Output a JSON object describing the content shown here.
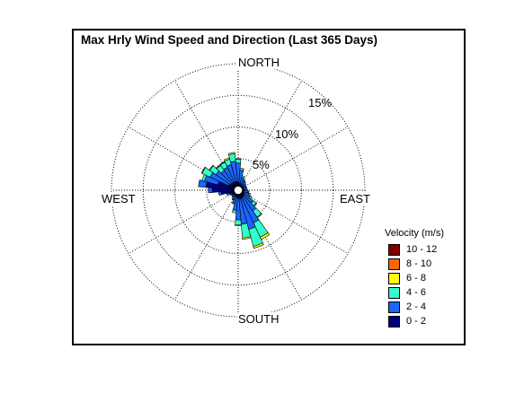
{
  "chart_data": {
    "type": "windrose",
    "title": "Max Hrly Wind Speed and Direction (Last 365 Days)",
    "directions": {
      "north": "NORTH",
      "south": "SOUTH",
      "east": "EAST",
      "west": "WEST"
    },
    "rings": [
      {
        "value": 5,
        "label": "5%"
      },
      {
        "value": 10,
        "label": "10%"
      },
      {
        "value": 15,
        "label": "15%"
      },
      {
        "value": 20,
        "label": ""
      }
    ],
    "legend": {
      "title": "Velocity (m/s)",
      "bins": [
        {
          "label": "10 - 12",
          "color": "#800000"
        },
        {
          "label": "8 - 10",
          "color": "#ff6600"
        },
        {
          "label": "6 - 8",
          "color": "#ffff00"
        },
        {
          "label": "4 - 6",
          "color": "#33ffcc"
        },
        {
          "label": "2 - 4",
          "color": "#1a66ff"
        },
        {
          "label": "0 - 2",
          "color": "#000080"
        }
      ]
    },
    "bin_order_inside_out": [
      "0 - 2",
      "2 - 4",
      "4 - 6",
      "6 - 8",
      "8 - 10",
      "10 - 12"
    ],
    "sector_width_deg": 10,
    "calm_center_percent": 0.5,
    "series": [
      {
        "direction_deg": 0,
        "values": [
          0.8,
          3.0,
          0.6,
          0.1,
          0,
          0
        ]
      },
      {
        "direction_deg": 10,
        "values": [
          0.7,
          2.0,
          0.3,
          0.0,
          0,
          0
        ]
      },
      {
        "direction_deg": 20,
        "values": [
          0.6,
          1.0,
          0.3,
          0.0,
          0,
          0
        ]
      },
      {
        "direction_deg": 30,
        "values": [
          0.5,
          0.8,
          0.1,
          0.0,
          0,
          0
        ]
      },
      {
        "direction_deg": 40,
        "values": [
          0.5,
          0.7,
          0.0,
          0.0,
          0,
          0
        ]
      },
      {
        "direction_deg": 50,
        "values": [
          0.4,
          0.6,
          0.0,
          0.0,
          0,
          0
        ]
      },
      {
        "direction_deg": 60,
        "values": [
          0.4,
          0.5,
          0.0,
          0.0,
          0,
          0
        ]
      },
      {
        "direction_deg": 70,
        "values": [
          0.4,
          0.5,
          0.0,
          0.0,
          0,
          0
        ]
      },
      {
        "direction_deg": 80,
        "values": [
          0.4,
          0.5,
          0.0,
          0.0,
          0,
          0
        ]
      },
      {
        "direction_deg": 90,
        "values": [
          0.4,
          0.6,
          0.0,
          0.0,
          0,
          0
        ]
      },
      {
        "direction_deg": 100,
        "values": [
          0.4,
          0.7,
          0.1,
          0.0,
          0,
          0
        ]
      },
      {
        "direction_deg": 110,
        "values": [
          0.5,
          0.8,
          0.2,
          0.0,
          0,
          0
        ]
      },
      {
        "direction_deg": 120,
        "values": [
          0.6,
          1.0,
          0.3,
          0.0,
          0,
          0
        ]
      },
      {
        "direction_deg": 130,
        "values": [
          0.6,
          1.8,
          0.6,
          0.1,
          0,
          0
        ]
      },
      {
        "direction_deg": 140,
        "values": [
          0.7,
          2.8,
          1.2,
          0.1,
          0,
          0
        ]
      },
      {
        "direction_deg": 150,
        "values": [
          0.8,
          4.4,
          2.5,
          0.4,
          0,
          0
        ]
      },
      {
        "direction_deg": 160,
        "values": [
          0.9,
          5.0,
          2.8,
          0.3,
          0,
          0
        ]
      },
      {
        "direction_deg": 170,
        "values": [
          0.9,
          4.0,
          2.2,
          0.2,
          0,
          0
        ]
      },
      {
        "direction_deg": 180,
        "values": [
          0.8,
          3.4,
          0.8,
          0.1,
          0,
          0
        ]
      },
      {
        "direction_deg": 190,
        "values": [
          0.7,
          2.0,
          0.4,
          0.0,
          0,
          0
        ]
      },
      {
        "direction_deg": 200,
        "values": [
          0.6,
          1.0,
          0.2,
          0.0,
          0,
          0
        ]
      },
      {
        "direction_deg": 210,
        "values": [
          0.5,
          0.6,
          0.1,
          0.0,
          0,
          0
        ]
      },
      {
        "direction_deg": 220,
        "values": [
          0.5,
          0.4,
          0.0,
          0.0,
          0,
          0
        ]
      },
      {
        "direction_deg": 230,
        "values": [
          0.5,
          0.3,
          0.0,
          0.0,
          0,
          0
        ]
      },
      {
        "direction_deg": 240,
        "values": [
          0.6,
          0.3,
          0.0,
          0.0,
          0,
          0
        ]
      },
      {
        "direction_deg": 250,
        "values": [
          1.0,
          0.4,
          0.0,
          0.0,
          0,
          0
        ]
      },
      {
        "direction_deg": 260,
        "values": [
          2.2,
          0.4,
          0.0,
          0.0,
          0,
          0
        ]
      },
      {
        "direction_deg": 270,
        "values": [
          3.6,
          0.6,
          0.0,
          0.0,
          0,
          0
        ]
      },
      {
        "direction_deg": 280,
        "values": [
          4.6,
          1.2,
          0.0,
          0.0,
          0,
          0
        ]
      },
      {
        "direction_deg": 290,
        "values": [
          2.8,
          2.2,
          0.4,
          0.0,
          0,
          0
        ]
      },
      {
        "direction_deg": 300,
        "values": [
          1.2,
          3.2,
          1.4,
          0.1,
          0,
          0
        ]
      },
      {
        "direction_deg": 310,
        "values": [
          1.0,
          2.8,
          1.2,
          0.1,
          0,
          0
        ]
      },
      {
        "direction_deg": 320,
        "values": [
          0.9,
          2.4,
          1.0,
          0.1,
          0,
          0
        ]
      },
      {
        "direction_deg": 330,
        "values": [
          0.9,
          2.6,
          0.9,
          0.1,
          0,
          0
        ]
      },
      {
        "direction_deg": 340,
        "values": [
          0.9,
          2.8,
          0.9,
          0.2,
          0,
          0
        ]
      },
      {
        "direction_deg": 350,
        "values": [
          0.9,
          3.2,
          1.2,
          0.2,
          0,
          0
        ]
      }
    ]
  }
}
